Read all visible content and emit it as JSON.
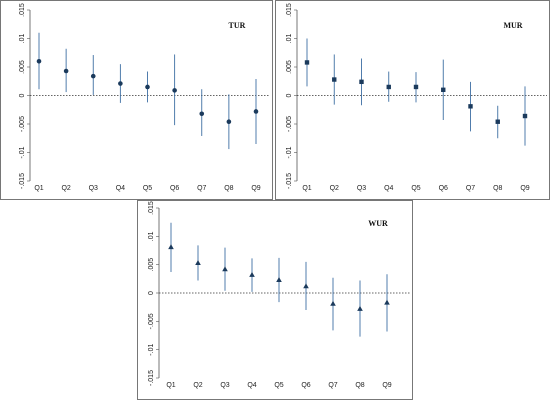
{
  "colors": {
    "marker": "#1b3a5c",
    "ci": "#3d6ea3"
  },
  "chart_data": [
    {
      "type": "scatter",
      "title": "TUR",
      "marker": "circle",
      "categories": [
        "Q1",
        "Q2",
        "Q3",
        "Q4",
        "Q5",
        "Q6",
        "Q7",
        "Q8",
        "Q9"
      ],
      "values": [
        0.006,
        0.0043,
        0.0034,
        0.0021,
        0.0015,
        0.0009,
        -0.0032,
        -0.0046,
        -0.0028
      ],
      "ci_low": [
        0.0011,
        0.0006,
        0.0001,
        -0.0013,
        -0.0012,
        -0.0052,
        -0.0071,
        -0.0094,
        -0.0085
      ],
      "ci_high": [
        0.011,
        0.0082,
        0.0071,
        0.0055,
        0.0042,
        0.0072,
        0.0011,
        0.0002,
        0.0029
      ],
      "ylim": [
        -0.015,
        0.015
      ],
      "yticks": [
        ".015",
        ".01",
        ".005",
        "0",
        "-.005",
        "-.01",
        "-.015"
      ],
      "reference_line": 0
    },
    {
      "type": "scatter",
      "title": "MUR",
      "marker": "square",
      "categories": [
        "Q1",
        "Q2",
        "Q3",
        "Q4",
        "Q5",
        "Q6",
        "Q7",
        "Q8",
        "Q9"
      ],
      "values": [
        0.0058,
        0.0028,
        0.0024,
        0.0015,
        0.0015,
        0.001,
        -0.0019,
        -0.0046,
        -0.0036
      ],
      "ci_low": [
        0.0016,
        -0.0016,
        -0.0017,
        -0.0011,
        -0.0012,
        -0.0043,
        -0.0063,
        -0.0075,
        -0.0088
      ],
      "ci_high": [
        0.01,
        0.0072,
        0.0065,
        0.0042,
        0.0041,
        0.0063,
        0.0024,
        -0.0018,
        0.0016
      ],
      "ylim": [
        -0.015,
        0.015
      ],
      "yticks": [
        ".015",
        ".01",
        ".005",
        "0",
        "-.005",
        "-.01",
        "-.015"
      ],
      "reference_line": 0
    },
    {
      "type": "scatter",
      "title": "WUR",
      "marker": "triangle",
      "categories": [
        "Q1",
        "Q2",
        "Q3",
        "Q4",
        "Q5",
        "Q6",
        "Q7",
        "Q8",
        "Q9"
      ],
      "values": [
        0.0081,
        0.0053,
        0.0042,
        0.0032,
        0.0023,
        0.0012,
        -0.0019,
        -0.0028,
        -0.0017
      ],
      "ci_low": [
        0.0037,
        0.0022,
        0.0004,
        0.0002,
        -0.0016,
        -0.003,
        -0.0066,
        -0.0077,
        -0.0068
      ],
      "ci_high": [
        0.0124,
        0.0084,
        0.008,
        0.0061,
        0.0062,
        0.0055,
        0.0027,
        0.0022,
        0.0033
      ],
      "ylim": [
        -0.015,
        0.015
      ],
      "yticks": [
        ".015",
        ".01",
        ".005",
        "0",
        "-.005",
        "-.01",
        "-.015"
      ],
      "reference_line": 0
    }
  ]
}
